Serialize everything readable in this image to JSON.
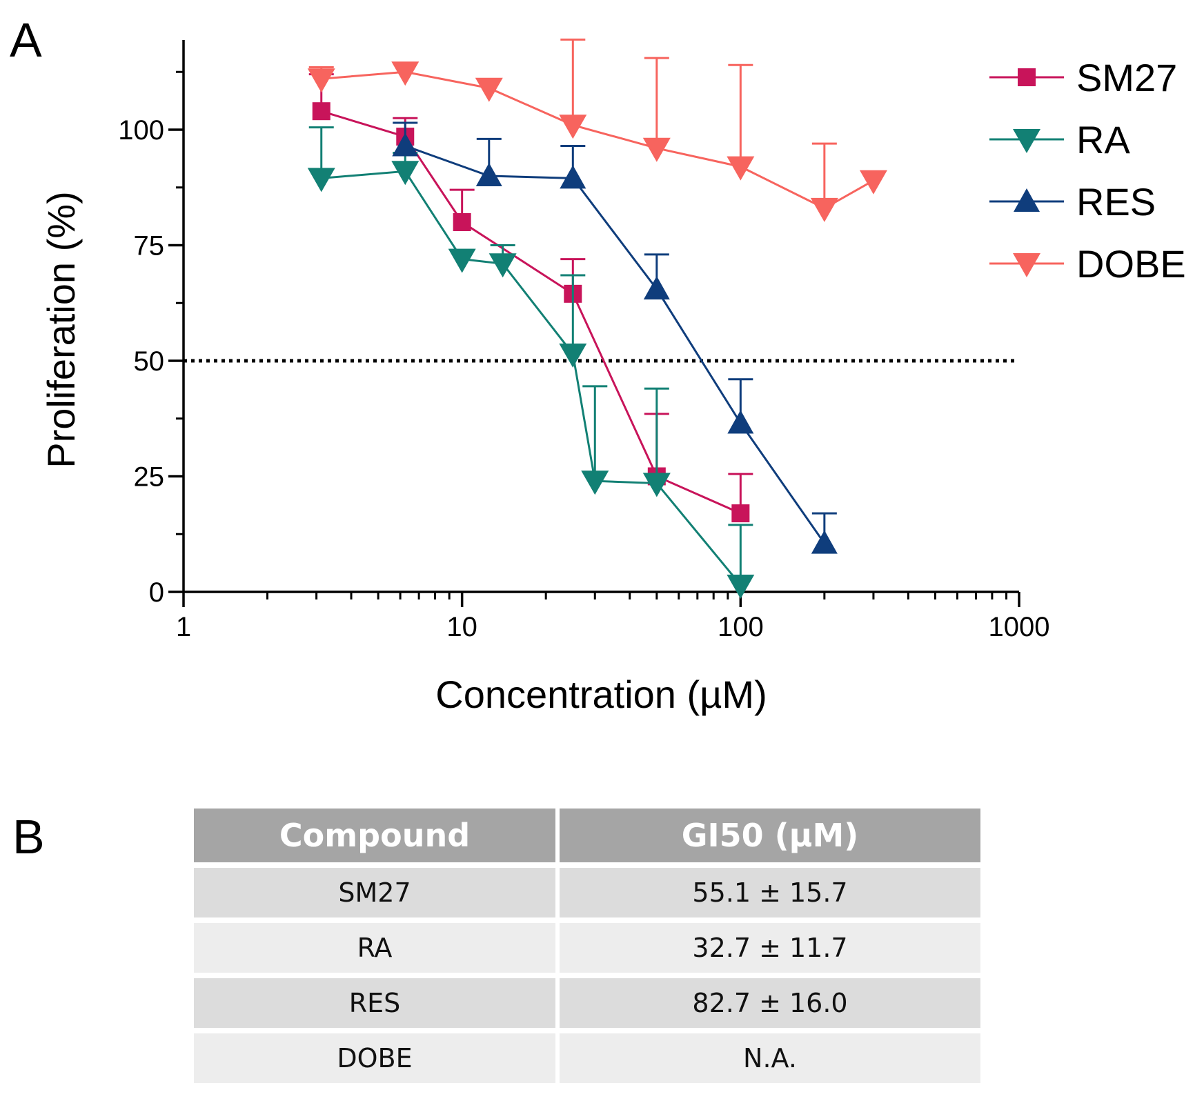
{
  "panel_a_label": "A",
  "panel_b_label": "B",
  "chart_data": {
    "type": "line",
    "xscale": "log",
    "xlabel": "Concentration (µM)",
    "ylabel": "Proliferation (%)",
    "xlim": [
      1,
      1000
    ],
    "ylim": [
      0,
      120
    ],
    "xticks": [
      1,
      10,
      100,
      1000
    ],
    "xtick_labels": [
      "1",
      "10",
      "100",
      "1000"
    ],
    "yticks": [
      0,
      25,
      50,
      75,
      100
    ],
    "ytick_labels": [
      "0",
      "25",
      "50",
      "75",
      "100"
    ],
    "reference_line": {
      "y": 50,
      "style": "dotted"
    },
    "legend_position": "top-right",
    "series": [
      {
        "name": "SM27",
        "marker": "square",
        "color": "#c8145a",
        "x": [
          3.125,
          6.25,
          10,
          25,
          50,
          100
        ],
        "y": [
          104,
          98.5,
          80,
          64.5,
          25,
          17
        ],
        "err": [
          8,
          4,
          7,
          7.5,
          13.5,
          8.5
        ]
      },
      {
        "name": "RA",
        "marker": "triangle-down",
        "color": "#128074",
        "x": [
          3.125,
          6.25,
          10,
          14,
          25,
          30,
          50,
          100
        ],
        "y": [
          89.5,
          91,
          72,
          71,
          51.5,
          24,
          23.5,
          1.5
        ],
        "err": [
          11,
          4,
          2,
          4,
          17,
          20.5,
          20.5,
          13
        ]
      },
      {
        "name": "RES",
        "marker": "triangle-up",
        "color": "#0f3d7c",
        "x": [
          6.25,
          12.5,
          25,
          50,
          100,
          200
        ],
        "y": [
          96.5,
          90,
          89.5,
          65.5,
          36.5,
          10.5
        ],
        "err": [
          5,
          8,
          7,
          7.5,
          9.5,
          6.5
        ]
      },
      {
        "name": "DOBE",
        "marker": "triangle-down",
        "color": "#f7645e",
        "x": [
          3.125,
          6.25,
          12.5,
          25,
          50,
          100,
          200,
          300
        ],
        "y": [
          111,
          112.5,
          109,
          101,
          96,
          92,
          83,
          89
        ],
        "err": [
          2.5,
          0,
          0,
          18.5,
          19.5,
          22,
          14,
          0
        ]
      }
    ]
  },
  "table": {
    "headers": [
      "Compound",
      "GI50 (µM)"
    ],
    "rows": [
      [
        "SM27",
        "55.1 ± 15.7"
      ],
      [
        "RA",
        "32.7 ± 11.7"
      ],
      [
        "RES",
        "82.7 ± 16.0"
      ],
      [
        "DOBE",
        "N.A."
      ]
    ]
  }
}
